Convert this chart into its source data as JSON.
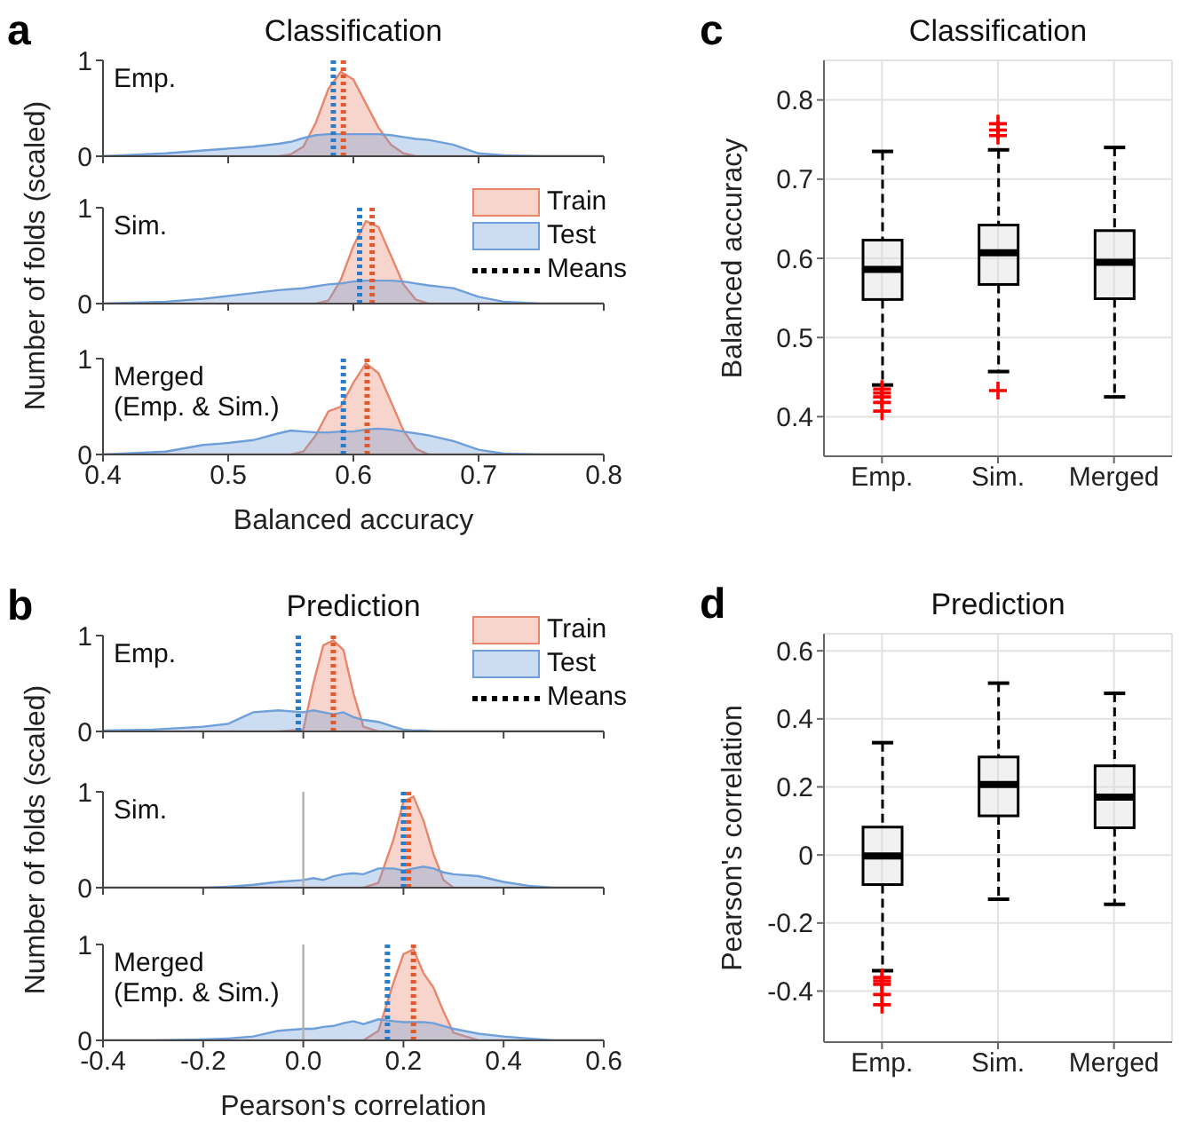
{
  "chart_data": [
    {
      "type": "area",
      "title": "Classification",
      "annotations": [
        "a",
        "Emp."
      ],
      "x": [
        0.4,
        0.45,
        0.48,
        0.5,
        0.52,
        0.54,
        0.55,
        0.56,
        0.57,
        0.58,
        0.59,
        0.6,
        0.61,
        0.62,
        0.63,
        0.64,
        0.65,
        0.66,
        0.68,
        0.7,
        0.72,
        0.75,
        0.8
      ],
      "xlim": [
        0.4,
        0.8
      ],
      "xticks": [
        0.4,
        0.5,
        0.6,
        0.7,
        0.8
      ],
      "ylim": [
        0,
        1
      ],
      "yticks": [
        0,
        1
      ],
      "tick_labels": "y",
      "series": [
        {
          "color": "#e8866c",
          "values": [
            0,
            0,
            0,
            0,
            0,
            0,
            0.02,
            0.1,
            0.35,
            0.7,
            0.88,
            0.8,
            0.55,
            0.3,
            0.12,
            0.03,
            0,
            0,
            0,
            0,
            0,
            0,
            0
          ]
        },
        {
          "color": "#6f9fd8",
          "values": [
            0,
            0.03,
            0.06,
            0.08,
            0.1,
            0.13,
            0.15,
            0.19,
            0.22,
            0.23,
            0.23,
            0.23,
            0.23,
            0.23,
            0.22,
            0.2,
            0.18,
            0.17,
            0.12,
            0.03,
            0.01,
            0,
            0
          ]
        }
      ],
      "ref_lines": [
        {
          "axis": "x",
          "value": 0.584,
          "color": "#2a7bc8",
          "line_style": "dotted"
        },
        {
          "axis": "x",
          "value": 0.592,
          "color": "#e05a2b",
          "line_style": "dotted"
        }
      ]
    },
    {
      "type": "area",
      "ylabel": "Number of folds (scaled)",
      "annotations": [
        "Sim."
      ],
      "x": [
        0.4,
        0.45,
        0.48,
        0.5,
        0.52,
        0.54,
        0.55,
        0.56,
        0.57,
        0.58,
        0.59,
        0.6,
        0.61,
        0.62,
        0.63,
        0.64,
        0.65,
        0.66,
        0.68,
        0.7,
        0.72,
        0.75,
        0.8
      ],
      "xlim": [
        0.4,
        0.8
      ],
      "xticks": [
        0.4,
        0.5,
        0.6,
        0.7,
        0.8
      ],
      "ylim": [
        0,
        1
      ],
      "yticks": [
        0,
        1
      ],
      "tick_labels": "y",
      "legend": "right",
      "series": [
        {
          "name": "Train",
          "color": "#e8866c",
          "values": [
            0,
            0,
            0,
            0,
            0,
            0,
            0,
            0,
            0,
            0.03,
            0.25,
            0.6,
            0.86,
            0.8,
            0.5,
            0.2,
            0.04,
            0,
            0,
            0,
            0,
            0,
            0
          ]
        },
        {
          "name": "Test",
          "color": "#6f9fd8",
          "values": [
            0,
            0.02,
            0.05,
            0.08,
            0.11,
            0.14,
            0.15,
            0.16,
            0.18,
            0.2,
            0.21,
            0.23,
            0.24,
            0.24,
            0.24,
            0.23,
            0.21,
            0.19,
            0.16,
            0.07,
            0.02,
            0,
            0
          ]
        },
        {
          "name": "Means",
          "type": "line",
          "color": "#000000",
          "line_style": "dotted",
          "values": [
            null,
            null,
            null,
            null,
            null,
            null,
            null,
            null,
            null,
            null,
            null,
            null,
            null,
            null,
            null,
            null,
            null,
            null,
            null,
            null,
            null,
            null,
            null
          ]
        }
      ],
      "ref_lines": [
        {
          "axis": "x",
          "value": 0.605,
          "color": "#2a7bc8",
          "line_style": "dotted"
        },
        {
          "axis": "x",
          "value": 0.615,
          "color": "#e05a2b",
          "line_style": "dotted"
        }
      ]
    },
    {
      "type": "area",
      "xlabel": "Balanced accuracy",
      "annotations": [
        "Merged\n(Emp. & Sim.)"
      ],
      "x": [
        0.4,
        0.45,
        0.48,
        0.5,
        0.52,
        0.54,
        0.55,
        0.56,
        0.57,
        0.58,
        0.59,
        0.6,
        0.61,
        0.62,
        0.63,
        0.64,
        0.65,
        0.66,
        0.68,
        0.7,
        0.72,
        0.75,
        0.8
      ],
      "xlim": [
        0.4,
        0.8
      ],
      "xticks": [
        0.4,
        0.5,
        0.6,
        0.7,
        0.8
      ],
      "ylim": [
        0,
        1
      ],
      "yticks": [
        0,
        1
      ],
      "series": [
        {
          "color": "#e8866c",
          "values": [
            0,
            0,
            0,
            0,
            0,
            0,
            0,
            0.03,
            0.2,
            0.45,
            0.5,
            0.75,
            0.95,
            0.85,
            0.55,
            0.25,
            0.06,
            0,
            0,
            0,
            0,
            0,
            0
          ]
        },
        {
          "color": "#6f9fd8",
          "values": [
            0,
            0.03,
            0.1,
            0.12,
            0.15,
            0.22,
            0.25,
            0.24,
            0.23,
            0.23,
            0.24,
            0.24,
            0.26,
            0.27,
            0.26,
            0.24,
            0.22,
            0.2,
            0.14,
            0.05,
            0.01,
            0,
            0
          ]
        }
      ],
      "ref_lines": [
        {
          "axis": "x",
          "value": 0.592,
          "color": "#2a7bc8",
          "line_style": "dotted"
        },
        {
          "axis": "x",
          "value": 0.611,
          "color": "#e05a2b",
          "line_style": "dotted"
        }
      ]
    },
    {
      "type": "box",
      "title": "Classification",
      "ylabel": "Balanced accuracy",
      "annotations": [
        "c"
      ],
      "categories": [
        "Emp.",
        "Sim.",
        "Merged"
      ],
      "ylim": [
        0.35,
        0.85
      ],
      "yticks": [
        0.4,
        0.5,
        0.6,
        0.7,
        0.8
      ],
      "grid": true,
      "series": [
        {
          "color": "#000000",
          "boxes": [
            {
              "low": 0.44,
              "q1": 0.548,
              "median": 0.586,
              "q3": 0.623,
              "high": 0.735,
              "outliers": [
                0.435,
                0.43,
                0.425,
                0.418,
                0.407
              ]
            },
            {
              "low": 0.457,
              "q1": 0.567,
              "median": 0.607,
              "q3": 0.642,
              "high": 0.737,
              "outliers": [
                0.433,
                0.755,
                0.762,
                0.77
              ]
            },
            {
              "low": 0.425,
              "q1": 0.549,
              "median": 0.595,
              "q3": 0.635,
              "high": 0.74
            }
          ]
        }
      ]
    },
    {
      "type": "area",
      "title": "Prediction",
      "annotations": [
        "b",
        "Emp."
      ],
      "x": [
        -0.4,
        -0.3,
        -0.2,
        -0.15,
        -0.1,
        -0.05,
        0,
        0.02,
        0.04,
        0.06,
        0.08,
        0.1,
        0.12,
        0.15,
        0.18,
        0.2,
        0.22,
        0.24,
        0.26,
        0.28,
        0.3,
        0.35,
        0.4,
        0.45,
        0.5,
        0.6
      ],
      "xlim": [
        -0.4,
        0.6
      ],
      "xticks": [
        -0.4,
        -0.2,
        0,
        0.2,
        0.4,
        0.6
      ],
      "ylim": [
        0,
        1
      ],
      "yticks": [
        0,
        1
      ],
      "tick_labels": "y",
      "legend": "right",
      "series": [
        {
          "name": "Train",
          "color": "#e8866c",
          "values": [
            0,
            0,
            0,
            0,
            0,
            0,
            0.02,
            0.5,
            0.9,
            0.95,
            0.85,
            0.4,
            0.05,
            0,
            0,
            0,
            0,
            0,
            0,
            0,
            0,
            0,
            0,
            0,
            0,
            0
          ]
        },
        {
          "name": "Test",
          "color": "#6f9fd8",
          "values": [
            0.01,
            0.02,
            0.05,
            0.08,
            0.2,
            0.22,
            0.2,
            0.22,
            0.2,
            0.18,
            0.2,
            0.15,
            0.12,
            0.1,
            0.05,
            0.02,
            0.01,
            0.01,
            0,
            0,
            0,
            0,
            0,
            0,
            0,
            0
          ]
        },
        {
          "name": "Means",
          "type": "line",
          "color": "#000000",
          "line_style": "dotted",
          "values": [
            null,
            null,
            null,
            null,
            null,
            null,
            null,
            null,
            null,
            null,
            null,
            null,
            null,
            null,
            null,
            null,
            null,
            null,
            null,
            null,
            null,
            null,
            null,
            null,
            null,
            null
          ]
        }
      ],
      "ref_lines": [
        {
          "axis": "x",
          "value": -0.01,
          "color": "#2a7bc8",
          "line_style": "dotted"
        },
        {
          "axis": "x",
          "value": 0.06,
          "color": "#e05a2b",
          "line_style": "dotted"
        }
      ]
    },
    {
      "type": "area",
      "ylabel": "Number of folds (scaled)",
      "annotations": [
        "Sim."
      ],
      "x": [
        -0.4,
        -0.3,
        -0.2,
        -0.15,
        -0.1,
        -0.05,
        0,
        0.02,
        0.04,
        0.06,
        0.08,
        0.1,
        0.12,
        0.15,
        0.18,
        0.2,
        0.22,
        0.24,
        0.26,
        0.28,
        0.3,
        0.35,
        0.4,
        0.45,
        0.5,
        0.6
      ],
      "xlim": [
        -0.4,
        0.6
      ],
      "xticks": [
        -0.4,
        -0.2,
        0,
        0.2,
        0.4,
        0.6
      ],
      "ylim": [
        0,
        1
      ],
      "yticks": [
        0,
        1
      ],
      "tick_labels": "y",
      "series": [
        {
          "color": "#e8866c",
          "values": [
            0,
            0,
            0,
            0,
            0,
            0,
            0,
            0,
            0,
            0,
            0,
            0,
            0,
            0.05,
            0.5,
            0.9,
            0.95,
            0.7,
            0.35,
            0.08,
            0,
            0,
            0,
            0,
            0,
            0
          ]
        },
        {
          "color": "#6f9fd8",
          "values": [
            0,
            0,
            0,
            0.01,
            0.03,
            0.06,
            0.08,
            0.1,
            0.08,
            0.12,
            0.14,
            0.15,
            0.14,
            0.2,
            0.2,
            0.18,
            0.2,
            0.22,
            0.2,
            0.16,
            0.14,
            0.12,
            0.06,
            0.02,
            0,
            0
          ]
        }
      ],
      "ref_lines": [
        {
          "axis": "x",
          "value": 0,
          "color": "#b0b0b0",
          "line_style": "solid"
        },
        {
          "axis": "x",
          "value": 0.2,
          "color": "#2a7bc8",
          "line_style": "dotted"
        },
        {
          "axis": "x",
          "value": 0.21,
          "color": "#e05a2b",
          "line_style": "dotted"
        }
      ]
    },
    {
      "type": "area",
      "xlabel": "Pearson's correlation",
      "annotations": [
        "Merged\n(Emp. & Sim.)"
      ],
      "x": [
        -0.4,
        -0.3,
        -0.2,
        -0.15,
        -0.1,
        -0.05,
        0,
        0.02,
        0.04,
        0.06,
        0.08,
        0.1,
        0.12,
        0.15,
        0.18,
        0.2,
        0.22,
        0.24,
        0.26,
        0.28,
        0.3,
        0.35,
        0.4,
        0.45,
        0.5,
        0.6
      ],
      "xlim": [
        -0.4,
        0.6
      ],
      "xticks": [
        -0.4,
        -0.2,
        {
          "value": 0,
          "label": "0.0"
        },
        0.2,
        0.4,
        0.6
      ],
      "ylim": [
        0,
        1
      ],
      "yticks": [
        0,
        1
      ],
      "series": [
        {
          "color": "#e8866c",
          "values": [
            0,
            0,
            0,
            0,
            0,
            0,
            0,
            0,
            0,
            0,
            0,
            0,
            0,
            0.1,
            0.6,
            0.9,
            0.95,
            0.7,
            0.55,
            0.3,
            0.08,
            0,
            0,
            0,
            0,
            0
          ]
        },
        {
          "color": "#6f9fd8",
          "values": [
            0,
            0,
            0.01,
            0.02,
            0.04,
            0.1,
            0.12,
            0.12,
            0.14,
            0.15,
            0.18,
            0.2,
            0.17,
            0.22,
            0.2,
            0.19,
            0.19,
            0.19,
            0.18,
            0.15,
            0.12,
            0.07,
            0.04,
            0.02,
            0,
            0
          ]
        }
      ],
      "ref_lines": [
        {
          "axis": "x",
          "value": 0,
          "color": "#b0b0b0",
          "line_style": "solid"
        },
        {
          "axis": "x",
          "value": 0.168,
          "color": "#2a7bc8",
          "line_style": "dotted"
        },
        {
          "axis": "x",
          "value": 0.22,
          "color": "#e05a2b",
          "line_style": "dotted"
        }
      ]
    },
    {
      "type": "box",
      "title": "Prediction",
      "ylabel": "Pearson's correlation",
      "annotations": [
        "d"
      ],
      "categories": [
        "Emp.",
        "Sim.",
        "Merged"
      ],
      "ylim": [
        -0.55,
        0.65
      ],
      "yticks": [
        -0.4,
        -0.2,
        0,
        0.2,
        0.4,
        0.6
      ],
      "grid": true,
      "series": [
        {
          "color": "#000000",
          "boxes": [
            {
              "low": -0.34,
              "q1": -0.087,
              "median": -0.003,
              "q3": 0.082,
              "high": 0.33,
              "outliers": [
                -0.36,
                -0.37,
                -0.38,
                -0.41,
                -0.44
              ]
            },
            {
              "low": -0.13,
              "q1": 0.115,
              "median": 0.207,
              "q3": 0.288,
              "high": 0.505
            },
            {
              "low": -0.145,
              "q1": 0.08,
              "median": 0.17,
              "q3": 0.262,
              "high": 0.475
            }
          ]
        }
      ]
    }
  ]
}
